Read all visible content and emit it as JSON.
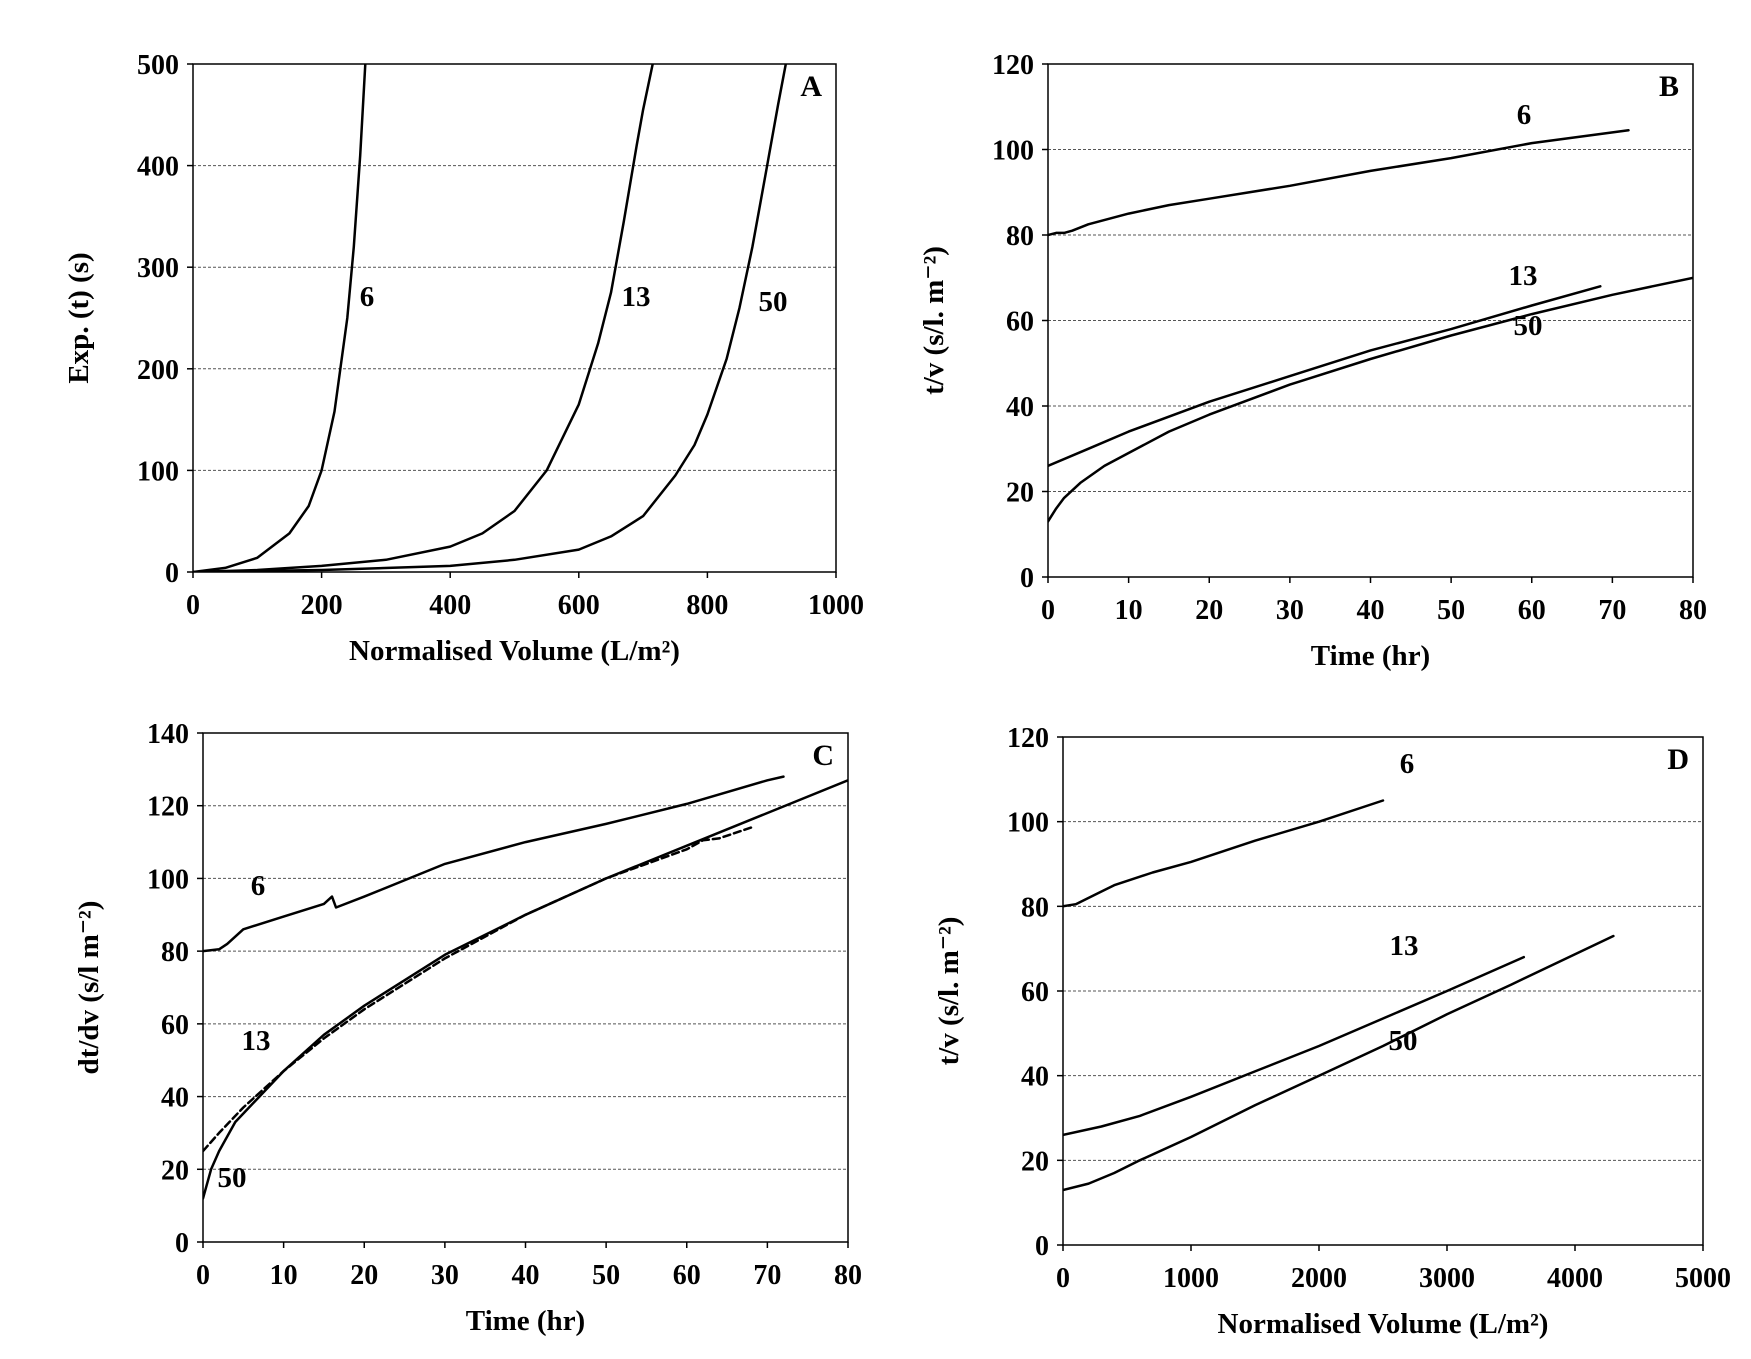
{
  "chart_data": [
    {
      "id": "A",
      "type": "line",
      "panel_label": "A",
      "xlabel": "Normalised Volume (L/m²)",
      "ylabel": "Exp. (t)   (s)",
      "xlim": [
        0,
        1000
      ],
      "ylim": [
        0,
        500
      ],
      "xticks": [
        0,
        200,
        400,
        600,
        800,
        1000
      ],
      "yticks": [
        0,
        100,
        200,
        300,
        400,
        500
      ],
      "grid": "horizontal dashed",
      "series": [
        {
          "name": "6",
          "style": "solid",
          "x": [
            0,
            50,
            100,
            150,
            180,
            200,
            220,
            240,
            250,
            260,
            268
          ],
          "y": [
            0,
            4,
            14,
            38,
            65,
            100,
            158,
            250,
            320,
            410,
            500
          ]
        },
        {
          "name": "13",
          "style": "solid",
          "x": [
            0,
            100,
            200,
            300,
            400,
            450,
            500,
            550,
            600,
            630,
            650,
            670,
            690,
            700,
            715
          ],
          "y": [
            0,
            2,
            6,
            12,
            25,
            38,
            60,
            100,
            165,
            225,
            275,
            345,
            420,
            455,
            500
          ]
        },
        {
          "name": "50",
          "style": "solid",
          "x": [
            0,
            200,
            400,
            500,
            600,
            650,
            700,
            750,
            780,
            800,
            830,
            850,
            870,
            890,
            910,
            922
          ],
          "y": [
            0,
            2,
            6,
            12,
            22,
            35,
            55,
            95,
            125,
            155,
            210,
            260,
            320,
            390,
            460,
            500
          ]
        }
      ],
      "annotations": [
        "6",
        "13",
        "50"
      ]
    },
    {
      "id": "B",
      "type": "line",
      "panel_label": "B",
      "xlabel": "Time (hr)",
      "ylabel": "t/v (s/l. m⁻²)",
      "xlim": [
        0,
        80
      ],
      "ylim": [
        0,
        120
      ],
      "xticks": [
        0,
        10,
        20,
        30,
        40,
        50,
        60,
        70,
        80
      ],
      "yticks": [
        0,
        20,
        40,
        60,
        80,
        100,
        120
      ],
      "grid": "horizontal dashed",
      "series": [
        {
          "name": "6",
          "style": "solid",
          "x": [
            0,
            1,
            2,
            3,
            5,
            10,
            15,
            20,
            30,
            40,
            50,
            60,
            72
          ],
          "y": [
            80,
            80.5,
            80.5,
            81,
            82.5,
            85,
            87,
            88.5,
            91.5,
            95,
            98,
            101.5,
            104.5
          ]
        },
        {
          "name": "13",
          "style": "solid",
          "x": [
            0,
            5,
            10,
            20,
            30,
            40,
            50,
            60,
            68.5
          ],
          "y": [
            26,
            30,
            34,
            41,
            47,
            53,
            58,
            63.5,
            68
          ]
        },
        {
          "name": "50",
          "style": "solid",
          "x": [
            0,
            1,
            2,
            4,
            7,
            10,
            15,
            20,
            30,
            40,
            50,
            60,
            70,
            80
          ],
          "y": [
            13,
            16,
            18.5,
            22,
            26,
            29,
            34,
            38,
            45,
            51,
            56.5,
            61.5,
            66,
            70
          ]
        }
      ],
      "annotations": [
        "6",
        "13",
        "50"
      ]
    },
    {
      "id": "C",
      "type": "line",
      "panel_label": "C",
      "xlabel": "Time (hr)",
      "ylabel": "dt/dv (s/l m⁻²)",
      "xlim": [
        0,
        80
      ],
      "ylim": [
        0,
        140
      ],
      "xticks": [
        0,
        10,
        20,
        30,
        40,
        50,
        60,
        70,
        80
      ],
      "yticks": [
        0,
        20,
        40,
        60,
        80,
        100,
        120,
        140
      ],
      "grid": "horizontal dashed",
      "series": [
        {
          "name": "6",
          "style": "solid",
          "x": [
            0,
            2,
            3,
            5,
            10,
            15,
            16,
            16.5,
            20,
            30,
            40,
            50,
            60,
            70,
            72
          ],
          "y": [
            80,
            80.5,
            82,
            86,
            89.5,
            93,
            95,
            92,
            95,
            104,
            110,
            115,
            120.5,
            127,
            128
          ]
        },
        {
          "name": "13",
          "style": "dashed",
          "x": [
            0,
            2,
            5,
            10,
            15,
            20,
            30,
            40,
            50,
            60,
            62,
            64,
            68
          ],
          "y": [
            25,
            30,
            37,
            47,
            56,
            64,
            78,
            90,
            100,
            108,
            110.5,
            111,
            114
          ]
        },
        {
          "name": "50",
          "style": "solid",
          "x": [
            0,
            1,
            2,
            4,
            7,
            10,
            15,
            20,
            30,
            40,
            50,
            60,
            70,
            80
          ],
          "y": [
            12,
            20,
            25,
            33,
            40,
            47,
            57,
            65,
            79,
            90,
            100,
            109,
            118,
            127
          ]
        }
      ],
      "annotations": [
        "6",
        "13",
        "50"
      ]
    },
    {
      "id": "D",
      "type": "line",
      "panel_label": "D",
      "xlabel": "Normalised Volume (L/m²)",
      "ylabel": "t/v (s/l. m⁻²)",
      "xlim": [
        0,
        5000
      ],
      "ylim": [
        0,
        120
      ],
      "xticks": [
        0,
        1000,
        2000,
        3000,
        4000,
        5000
      ],
      "yticks": [
        0,
        20,
        40,
        60,
        80,
        100,
        120
      ],
      "grid": "horizontal dashed",
      "series": [
        {
          "name": "6",
          "style": "solid",
          "x": [
            0,
            100,
            200,
            400,
            700,
            1000,
            1500,
            2000,
            2500
          ],
          "y": [
            80,
            80.5,
            82,
            85,
            88,
            90.5,
            95.5,
            100,
            105
          ]
        },
        {
          "name": "13",
          "style": "solid",
          "x": [
            0,
            300,
            600,
            1000,
            1500,
            2000,
            2500,
            3000,
            3600
          ],
          "y": [
            26,
            28,
            30.5,
            35,
            41,
            47,
            53.5,
            60,
            68
          ]
        },
        {
          "name": "50",
          "style": "solid",
          "x": [
            0,
            200,
            400,
            600,
            1000,
            1500,
            2000,
            2500,
            3000,
            3500,
            4300
          ],
          "y": [
            13,
            14.5,
            17,
            20,
            25.5,
            33,
            40,
            47,
            54.5,
            61.5,
            73
          ]
        }
      ],
      "annotations": [
        "6",
        "13",
        "50"
      ]
    }
  ]
}
